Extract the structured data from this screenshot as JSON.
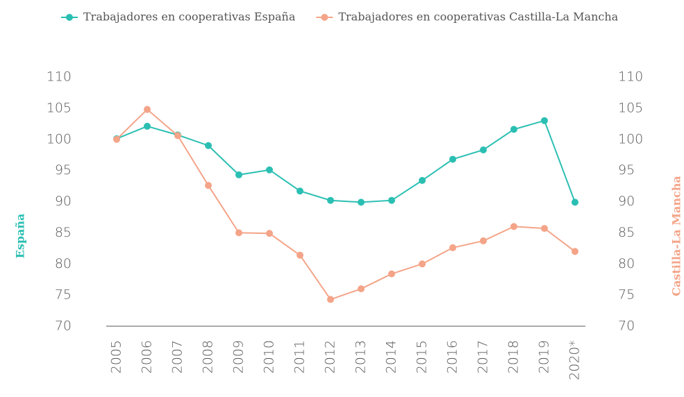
{
  "chart_data": {
    "type": "line",
    "categories": [
      "2005",
      "2006",
      "2007",
      "2008",
      "2009",
      "2010",
      "2011",
      "2012",
      "2013",
      "2014",
      "2015",
      "2016",
      "2017",
      "2018",
      "2019",
      "2020*"
    ],
    "series": [
      {
        "name": "Trabajadores en cooperativas España",
        "color": "#2bbfb3",
        "axis": "y",
        "values": [
          100.1,
          102.1,
          100.7,
          99.0,
          94.3,
          95.1,
          91.7,
          90.2,
          89.9,
          90.2,
          93.4,
          96.8,
          98.3,
          101.6,
          103.0,
          89.9
        ]
      },
      {
        "name": "Trabajadores en cooperativas Castilla-La Mancha",
        "color": "#f4a488",
        "axis": "y2",
        "values": [
          100.0,
          104.8,
          100.6,
          92.6,
          85.0,
          84.9,
          81.4,
          74.3,
          76.0,
          78.4,
          80.0,
          82.6,
          83.7,
          86.0,
          85.7,
          82.0
        ]
      }
    ],
    "ylabel": "España",
    "y2label": "Castilla-La Mancha",
    "ylim": [
      70,
      110
    ],
    "yticks": [
      70,
      75,
      80,
      85,
      90,
      95,
      100,
      105,
      110
    ],
    "y2lim": [
      70,
      110
    ],
    "y2ticks": [
      70,
      75,
      80,
      85,
      90,
      95,
      100,
      105,
      110
    ],
    "legend": "top"
  }
}
